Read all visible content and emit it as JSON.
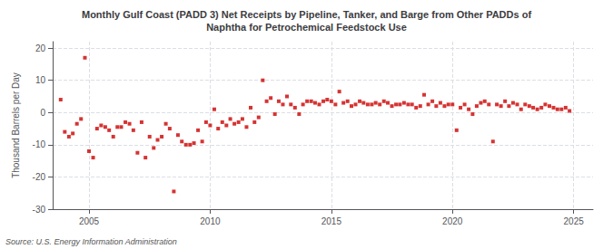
{
  "chart_data": {
    "type": "scatter",
    "title": "Monthly Gulf Coast (PADD 3) Net Receipts by Pipeline, Tanker, and Barge from Other PADDs of\nNaphtha for Petrochemical Feedstock Use",
    "ylabel": "Thousand Barrels per Day",
    "annotations": [
      "Source: U.S. Energy Information Administration"
    ],
    "color": "#cc0000",
    "marker": "square",
    "grid": true,
    "xlim": [
      2003.5,
      2025.8
    ],
    "xticks": [
      2005,
      2010,
      2015,
      2020,
      2025
    ],
    "ylim": [
      -30,
      22
    ],
    "yticks": [
      -30,
      -20,
      -10,
      0,
      10,
      20
    ],
    "x": [
      2003.83,
      2004.0,
      2004.17,
      2004.33,
      2004.5,
      2004.67,
      2004.83,
      2005.0,
      2005.17,
      2005.33,
      2005.5,
      2005.67,
      2005.83,
      2006.0,
      2006.17,
      2006.33,
      2006.5,
      2006.67,
      2006.83,
      2007.0,
      2007.17,
      2007.33,
      2007.5,
      2007.67,
      2007.83,
      2008.0,
      2008.17,
      2008.33,
      2008.5,
      2008.67,
      2008.83,
      2009.0,
      2009.17,
      2009.33,
      2009.5,
      2009.67,
      2009.83,
      2010.0,
      2010.17,
      2010.33,
      2010.5,
      2010.67,
      2010.83,
      2011.0,
      2011.17,
      2011.33,
      2011.5,
      2011.67,
      2011.83,
      2012.0,
      2012.17,
      2012.33,
      2012.5,
      2012.67,
      2012.83,
      2013.0,
      2013.17,
      2013.33,
      2013.5,
      2013.67,
      2013.83,
      2014.0,
      2014.17,
      2014.33,
      2014.5,
      2014.67,
      2014.83,
      2015.0,
      2015.17,
      2015.33,
      2015.5,
      2015.67,
      2015.83,
      2016.0,
      2016.17,
      2016.33,
      2016.5,
      2016.67,
      2016.83,
      2017.0,
      2017.17,
      2017.33,
      2017.5,
      2017.67,
      2017.83,
      2018.0,
      2018.17,
      2018.33,
      2018.5,
      2018.67,
      2018.83,
      2019.0,
      2019.17,
      2019.33,
      2019.5,
      2019.67,
      2019.83,
      2020.0,
      2020.17,
      2020.33,
      2020.5,
      2020.67,
      2020.83,
      2021.0,
      2021.17,
      2021.33,
      2021.5,
      2021.67,
      2021.83,
      2022.0,
      2022.17,
      2022.33,
      2022.5,
      2022.67,
      2022.83,
      2023.0,
      2023.17,
      2023.33,
      2023.5,
      2023.67,
      2023.83,
      2024.0,
      2024.17,
      2024.33,
      2024.5,
      2024.67,
      2024.83
    ],
    "values": [
      4.0,
      -6.0,
      -7.5,
      -6.5,
      -3.5,
      -2.0,
      17.0,
      -12.0,
      -14.0,
      -5.0,
      -4.0,
      -4.5,
      -5.5,
      -7.5,
      -4.5,
      -4.5,
      -3.0,
      -3.5,
      -5.5,
      -12.5,
      -3.0,
      -14.0,
      -7.5,
      -11.0,
      -8.5,
      -7.5,
      -3.5,
      -5.0,
      -24.5,
      -7.0,
      -9.0,
      -10.0,
      -10.0,
      -9.5,
      -5.5,
      -9.0,
      -3.0,
      -4.0,
      1.0,
      -5.0,
      -3.0,
      -4.0,
      -2.0,
      -3.5,
      -3.0,
      -2.0,
      -4.5,
      1.5,
      -3.0,
      -1.5,
      10.0,
      3.5,
      4.5,
      -0.5,
      3.5,
      2.5,
      5.0,
      2.5,
      1.5,
      -0.5,
      2.5,
      3.5,
      3.5,
      3.0,
      2.5,
      3.5,
      4.0,
      3.5,
      2.5,
      6.5,
      3.0,
      3.5,
      2.0,
      2.5,
      3.5,
      3.0,
      2.5,
      2.5,
      3.0,
      2.5,
      3.5,
      3.0,
      2.0,
      2.5,
      2.5,
      3.0,
      2.5,
      2.5,
      1.5,
      2.0,
      5.5,
      2.5,
      3.5,
      2.0,
      3.0,
      2.0,
      2.5,
      2.5,
      -5.5,
      1.5,
      2.5,
      1.0,
      -0.5,
      2.0,
      3.0,
      3.5,
      2.5,
      -9.0,
      2.5,
      2.0,
      3.5,
      2.0,
      3.0,
      2.5,
      1.0,
      2.5,
      2.0,
      1.5,
      1.0,
      1.5,
      2.5,
      2.0,
      1.5,
      1.0,
      1.0,
      1.5,
      0.5
    ]
  }
}
